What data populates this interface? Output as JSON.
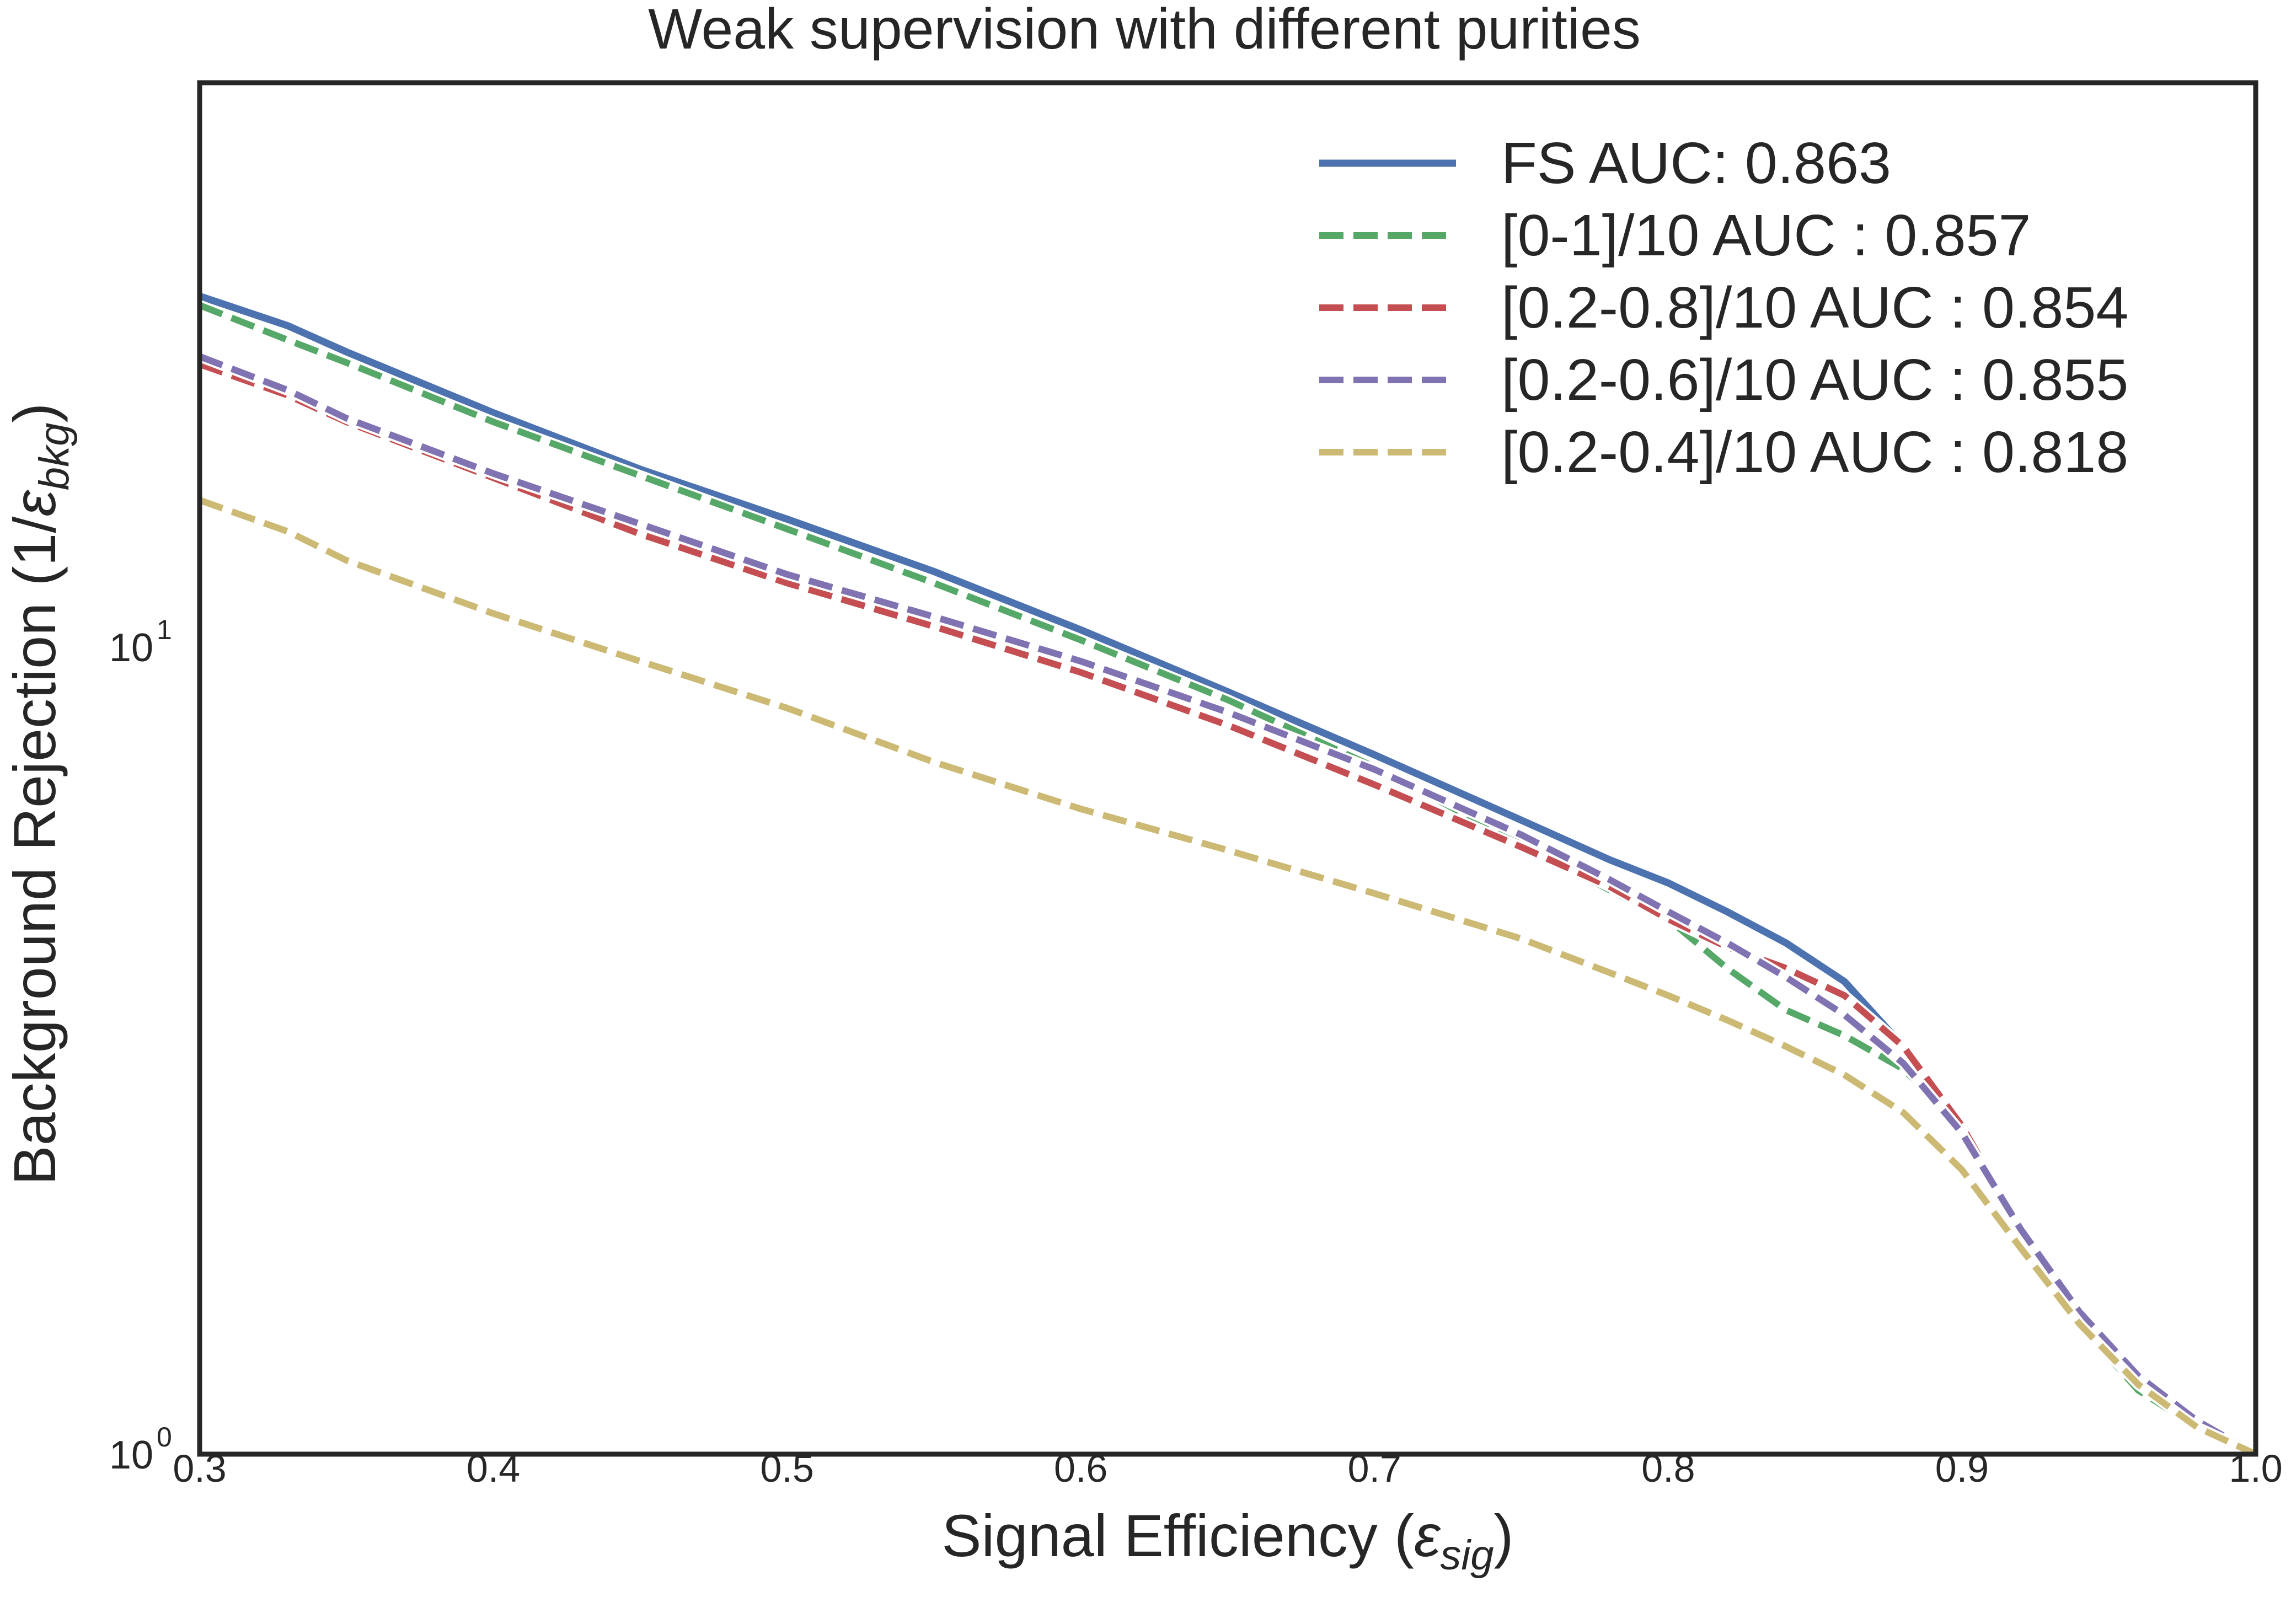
{
  "chart_data": {
    "type": "line",
    "title": "Weak supervision with different purities",
    "xlabel": {
      "main": "Signal Efficiency (",
      "symbol": "ε",
      "sub": "sig",
      "close": ")"
    },
    "ylabel": {
      "main": "Background Rejection (1/",
      "symbol": "ε",
      "sub": "bkg",
      "close": ")"
    },
    "xlim": [
      0.3,
      1.0
    ],
    "ylim": [
      1,
      50
    ],
    "yscale": "log",
    "grid": false,
    "legend_position": "top-right",
    "x_ticks": [
      {
        "value": 0.3,
        "label": "0.3"
      },
      {
        "value": 0.4,
        "label": "0.4"
      },
      {
        "value": 0.5,
        "label": "0.5"
      },
      {
        "value": 0.6,
        "label": "0.6"
      },
      {
        "value": 0.7,
        "label": "0.7"
      },
      {
        "value": 0.8,
        "label": "0.8"
      },
      {
        "value": 0.9,
        "label": "0.9"
      },
      {
        "value": 1.0,
        "label": "1.0"
      }
    ],
    "y_ticks": [
      {
        "value": 1,
        "base": "10",
        "exp": "0"
      },
      {
        "value": 10,
        "base": "10",
        "exp": "1"
      }
    ],
    "series": [
      {
        "name": "FS AUC: 0.863",
        "color": "#4c72b0",
        "dashed": false,
        "x": [
          0.3,
          0.33,
          0.35,
          0.4,
          0.45,
          0.5,
          0.55,
          0.6,
          0.65,
          0.7,
          0.75,
          0.78,
          0.8,
          0.82,
          0.84,
          0.86,
          0.88,
          0.9,
          0.92,
          0.94,
          0.96,
          0.98,
          1.0
        ],
        "y": [
          27.2,
          25.0,
          23.2,
          19.5,
          16.6,
          14.4,
          12.4,
          10.5,
          8.8,
          7.35,
          6.1,
          5.45,
          5.1,
          4.7,
          4.3,
          3.85,
          3.2,
          2.5,
          1.9,
          1.5,
          1.25,
          1.1,
          1.0
        ]
      },
      {
        "name": "[0-1]/10 AUC : 0.857",
        "color": "#55a868",
        "dashed": true,
        "x": [
          0.3,
          0.33,
          0.35,
          0.4,
          0.45,
          0.5,
          0.55,
          0.6,
          0.65,
          0.7,
          0.75,
          0.78,
          0.8,
          0.82,
          0.84,
          0.86,
          0.88,
          0.9,
          0.92,
          0.94,
          0.96,
          0.98,
          1.0
        ],
        "y": [
          26.5,
          24.0,
          22.5,
          19.0,
          16.3,
          14.0,
          12.0,
          10.2,
          8.6,
          7.1,
          5.7,
          5.0,
          4.6,
          4.0,
          3.55,
          3.3,
          3.0,
          2.55,
          1.9,
          1.45,
          1.2,
          1.08,
          1.0
        ]
      },
      {
        "name": "[0.2-0.8]/10 AUC : 0.854",
        "color": "#c44e52",
        "dashed": true,
        "x": [
          0.3,
          0.33,
          0.35,
          0.4,
          0.45,
          0.5,
          0.55,
          0.6,
          0.65,
          0.7,
          0.75,
          0.78,
          0.8,
          0.82,
          0.84,
          0.86,
          0.88,
          0.9,
          0.92,
          0.94,
          0.96,
          0.98,
          1.0
        ],
        "y": [
          22.4,
          20.5,
          19.0,
          16.2,
          13.8,
          12.0,
          10.6,
          9.3,
          8.0,
          6.75,
          5.65,
          5.05,
          4.6,
          4.25,
          4.0,
          3.7,
          3.2,
          2.55,
          1.9,
          1.5,
          1.25,
          1.1,
          1.0
        ]
      },
      {
        "name": "[0.2-0.6]/10 AUC : 0.855",
        "color": "#8172b2",
        "dashed": true,
        "x": [
          0.3,
          0.33,
          0.35,
          0.4,
          0.45,
          0.5,
          0.55,
          0.6,
          0.65,
          0.7,
          0.75,
          0.78,
          0.8,
          0.82,
          0.84,
          0.86,
          0.88,
          0.9,
          0.92,
          0.94,
          0.96,
          0.98,
          1.0
        ],
        "y": [
          22.9,
          20.8,
          19.2,
          16.4,
          14.2,
          12.3,
          10.9,
          9.6,
          8.3,
          7.05,
          5.85,
          5.15,
          4.7,
          4.3,
          3.9,
          3.5,
          3.05,
          2.5,
          1.9,
          1.5,
          1.25,
          1.1,
          1.0
        ]
      },
      {
        "name": "[0.2-0.4]/10 AUC : 0.818",
        "color": "#ccb974",
        "dashed": true,
        "x": [
          0.3,
          0.33,
          0.35,
          0.4,
          0.45,
          0.5,
          0.55,
          0.6,
          0.65,
          0.7,
          0.75,
          0.78,
          0.8,
          0.82,
          0.84,
          0.86,
          0.88,
          0.9,
          0.92,
          0.94,
          0.96,
          0.98,
          1.0
        ],
        "y": [
          15.2,
          13.9,
          12.8,
          11.0,
          9.6,
          8.4,
          7.2,
          6.3,
          5.6,
          4.95,
          4.35,
          3.95,
          3.7,
          3.45,
          3.2,
          2.95,
          2.65,
          2.25,
          1.8,
          1.45,
          1.22,
          1.08,
          1.0
        ]
      }
    ]
  }
}
